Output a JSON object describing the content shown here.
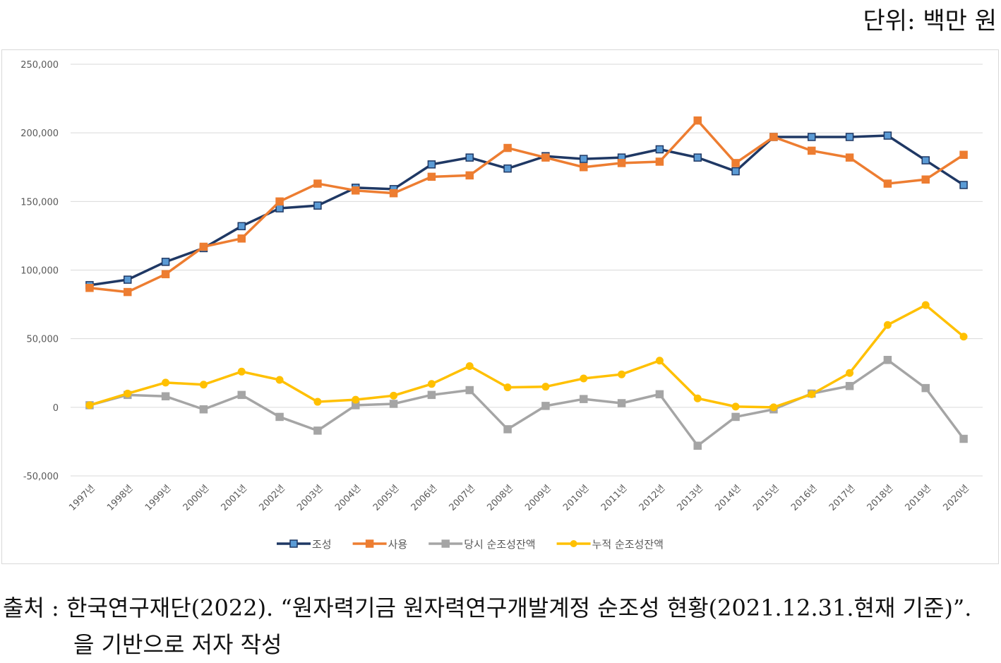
{
  "unit_label": "단위: 백만 원",
  "source": {
    "line1": "출처 : 한국연구재단(2022). “원자력기금 원자력연구개발계정 순조성 현황(2021.12.31.현재 기준)”.",
    "line2": "을 기반으로 저자 작성"
  },
  "chart_data": {
    "type": "line",
    "title": "",
    "xlabel": "",
    "ylabel": "",
    "ylim": [
      -50000,
      250000
    ],
    "y_ticks": [
      -50000,
      0,
      50000,
      100000,
      150000,
      200000,
      250000
    ],
    "y_tick_labels": [
      "-50,000",
      "0",
      "50,000",
      "100,000",
      "150,000",
      "200,000",
      "250,000"
    ],
    "grid": true,
    "legend_position": "bottom",
    "categories": [
      "1997년",
      "1998년",
      "1999년",
      "2000년",
      "2001년",
      "2002년",
      "2003년",
      "2004년",
      "2005년",
      "2006년",
      "2007년",
      "2008년",
      "2009년",
      "2010년",
      "2011년",
      "2012년",
      "2013년",
      "2014년",
      "2015년",
      "2016년",
      "2017년",
      "2018년",
      "2019년",
      "2020년"
    ],
    "series": [
      {
        "name": "조성",
        "color": "#1f3864",
        "marker": "square",
        "marker_color": "#5b9bd5",
        "values": [
          89000,
          93000,
          106000,
          116000,
          132000,
          145000,
          147000,
          160000,
          159000,
          177000,
          182000,
          174000,
          183000,
          181000,
          182000,
          188000,
          182000,
          172000,
          197000,
          197000,
          197000,
          198000,
          180000,
          162000
        ]
      },
      {
        "name": "사용",
        "color": "#ed7d31",
        "marker": "square",
        "marker_color": "#ed7d31",
        "values": [
          87000,
          84000,
          97000,
          117000,
          123000,
          150000,
          163000,
          158000,
          156000,
          168000,
          169000,
          189000,
          182000,
          175000,
          178000,
          179000,
          209000,
          178000,
          197000,
          187000,
          182000,
          163000,
          166000,
          184000
        ]
      },
      {
        "name": "당시 순조성잔액",
        "color": "#a5a5a5",
        "marker": "square",
        "marker_color": "#a5a5a5",
        "values": [
          1500,
          9000,
          8000,
          -1500,
          9000,
          -7000,
          -17000,
          1500,
          2500,
          9000,
          12500,
          -16000,
          1000,
          6000,
          3000,
          9500,
          -28000,
          -7000,
          -1500,
          10000,
          15500,
          34500,
          14000,
          -23000
        ]
      },
      {
        "name": "누적 순조성잔액",
        "color": "#ffc000",
        "marker": "circle",
        "marker_color": "#ffc000",
        "values": [
          1500,
          10000,
          18000,
          16500,
          26000,
          20000,
          4000,
          5500,
          8500,
          17000,
          30000,
          14500,
          15000,
          21000,
          24000,
          34000,
          6500,
          500,
          0,
          9500,
          25000,
          60000,
          74500,
          51500
        ]
      }
    ]
  }
}
